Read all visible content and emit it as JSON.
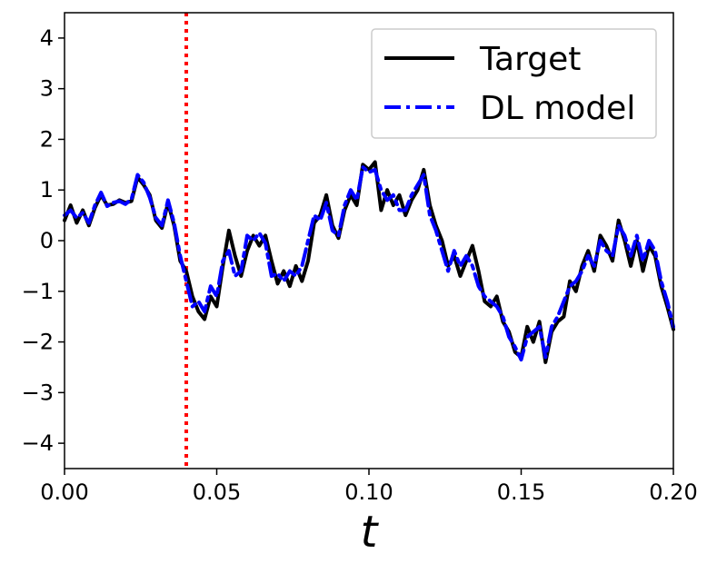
{
  "chart_data": {
    "type": "line",
    "title": "",
    "xlabel": "t",
    "ylabel": "",
    "xlim": [
      0.0,
      0.2
    ],
    "ylim": [
      -4.5,
      4.5
    ],
    "x_ticks": [
      0.0,
      0.05,
      0.1,
      0.15,
      0.2
    ],
    "x_tick_labels": [
      "0.00",
      "0.05",
      "0.10",
      "0.15",
      "0.20"
    ],
    "y_ticks": [
      4,
      3,
      2,
      1,
      0,
      -1,
      -2,
      -3,
      -4
    ],
    "y_tick_labels": [
      "4",
      "3",
      "2",
      "1",
      "0",
      "−1",
      "−2",
      "−3",
      "−4"
    ],
    "grid": false,
    "legend_position": "top-right",
    "vline": {
      "x": 0.04,
      "color": "#ff0000",
      "style": "dotted"
    },
    "series": [
      {
        "name": "Target",
        "color": "#000000",
        "style": "solid",
        "points": [
          [
            0.0,
            0.4
          ],
          [
            0.002,
            0.7
          ],
          [
            0.004,
            0.35
          ],
          [
            0.006,
            0.6
          ],
          [
            0.008,
            0.3
          ],
          [
            0.01,
            0.65
          ],
          [
            0.012,
            0.9
          ],
          [
            0.014,
            0.7
          ],
          [
            0.016,
            0.72
          ],
          [
            0.018,
            0.8
          ],
          [
            0.02,
            0.75
          ],
          [
            0.022,
            0.78
          ],
          [
            0.024,
            1.25
          ],
          [
            0.026,
            1.1
          ],
          [
            0.028,
            0.9
          ],
          [
            0.03,
            0.4
          ],
          [
            0.032,
            0.25
          ],
          [
            0.034,
            0.75
          ],
          [
            0.036,
            0.3
          ],
          [
            0.038,
            -0.4
          ],
          [
            0.04,
            -0.6
          ],
          [
            0.042,
            -1.1
          ],
          [
            0.044,
            -1.4
          ],
          [
            0.046,
            -1.55
          ],
          [
            0.048,
            -1.1
          ],
          [
            0.05,
            -1.3
          ],
          [
            0.052,
            -0.5
          ],
          [
            0.054,
            0.2
          ],
          [
            0.056,
            -0.3
          ],
          [
            0.058,
            -0.7
          ],
          [
            0.06,
            -0.2
          ],
          [
            0.062,
            0.1
          ],
          [
            0.064,
            -0.1
          ],
          [
            0.066,
            0.1
          ],
          [
            0.068,
            -0.4
          ],
          [
            0.07,
            -0.85
          ],
          [
            0.072,
            -0.6
          ],
          [
            0.074,
            -0.9
          ],
          [
            0.076,
            -0.5
          ],
          [
            0.078,
            -0.8
          ],
          [
            0.08,
            -0.4
          ],
          [
            0.082,
            0.35
          ],
          [
            0.084,
            0.5
          ],
          [
            0.086,
            0.9
          ],
          [
            0.088,
            0.3
          ],
          [
            0.09,
            0.05
          ],
          [
            0.092,
            0.6
          ],
          [
            0.094,
            0.9
          ],
          [
            0.096,
            0.7
          ],
          [
            0.098,
            1.5
          ],
          [
            0.1,
            1.4
          ],
          [
            0.102,
            1.55
          ],
          [
            0.104,
            0.6
          ],
          [
            0.106,
            1.0
          ],
          [
            0.108,
            0.7
          ],
          [
            0.11,
            0.9
          ],
          [
            0.112,
            0.5
          ],
          [
            0.114,
            0.8
          ],
          [
            0.116,
            1.0
          ],
          [
            0.118,
            1.4
          ],
          [
            0.12,
            0.7
          ],
          [
            0.122,
            0.3
          ],
          [
            0.124,
            0.0
          ],
          [
            0.126,
            -0.5
          ],
          [
            0.128,
            -0.3
          ],
          [
            0.13,
            -0.7
          ],
          [
            0.132,
            -0.4
          ],
          [
            0.134,
            -0.1
          ],
          [
            0.136,
            -0.6
          ],
          [
            0.138,
            -1.2
          ],
          [
            0.14,
            -1.3
          ],
          [
            0.142,
            -1.1
          ],
          [
            0.144,
            -1.6
          ],
          [
            0.146,
            -1.8
          ],
          [
            0.148,
            -2.2
          ],
          [
            0.15,
            -2.3
          ],
          [
            0.152,
            -1.7
          ],
          [
            0.154,
            -2.0
          ],
          [
            0.156,
            -1.6
          ],
          [
            0.158,
            -2.4
          ],
          [
            0.16,
            -1.8
          ],
          [
            0.162,
            -1.6
          ],
          [
            0.164,
            -1.5
          ],
          [
            0.166,
            -0.8
          ],
          [
            0.168,
            -1.0
          ],
          [
            0.17,
            -0.5
          ],
          [
            0.172,
            -0.2
          ],
          [
            0.174,
            -0.6
          ],
          [
            0.176,
            0.1
          ],
          [
            0.178,
            -0.1
          ],
          [
            0.18,
            -0.4
          ],
          [
            0.182,
            0.4
          ],
          [
            0.184,
            0.0
          ],
          [
            0.186,
            -0.5
          ],
          [
            0.188,
            0.0
          ],
          [
            0.19,
            -0.6
          ],
          [
            0.192,
            -0.1
          ],
          [
            0.194,
            -0.3
          ],
          [
            0.196,
            -0.9
          ],
          [
            0.198,
            -1.3
          ],
          [
            0.2,
            -1.75
          ]
        ]
      },
      {
        "name": "DL model",
        "color": "#0000ff",
        "style": "dashdot",
        "points": [
          [
            0.0,
            0.5
          ],
          [
            0.002,
            0.6
          ],
          [
            0.004,
            0.45
          ],
          [
            0.006,
            0.55
          ],
          [
            0.008,
            0.35
          ],
          [
            0.01,
            0.7
          ],
          [
            0.012,
            0.95
          ],
          [
            0.014,
            0.68
          ],
          [
            0.016,
            0.75
          ],
          [
            0.018,
            0.78
          ],
          [
            0.02,
            0.72
          ],
          [
            0.022,
            0.82
          ],
          [
            0.024,
            1.3
          ],
          [
            0.026,
            1.15
          ],
          [
            0.028,
            0.85
          ],
          [
            0.03,
            0.45
          ],
          [
            0.032,
            0.3
          ],
          [
            0.034,
            0.8
          ],
          [
            0.036,
            0.35
          ],
          [
            0.038,
            -0.3
          ],
          [
            0.04,
            -0.8
          ],
          [
            0.042,
            -1.3
          ],
          [
            0.044,
            -1.2
          ],
          [
            0.046,
            -1.4
          ],
          [
            0.048,
            -0.9
          ],
          [
            0.05,
            -1.1
          ],
          [
            0.052,
            -0.4
          ],
          [
            0.054,
            -0.2
          ],
          [
            0.056,
            -0.7
          ],
          [
            0.058,
            -0.6
          ],
          [
            0.06,
            0.1
          ],
          [
            0.062,
            0.0
          ],
          [
            0.064,
            0.15
          ],
          [
            0.066,
            -0.05
          ],
          [
            0.068,
            -0.7
          ],
          [
            0.07,
            -0.65
          ],
          [
            0.072,
            -0.8
          ],
          [
            0.074,
            -0.6
          ],
          [
            0.076,
            -0.7
          ],
          [
            0.078,
            -0.5
          ],
          [
            0.08,
            0.0
          ],
          [
            0.082,
            0.5
          ],
          [
            0.084,
            0.4
          ],
          [
            0.086,
            0.75
          ],
          [
            0.088,
            0.2
          ],
          [
            0.09,
            0.1
          ],
          [
            0.092,
            0.7
          ],
          [
            0.094,
            1.0
          ],
          [
            0.096,
            0.8
          ],
          [
            0.098,
            1.45
          ],
          [
            0.1,
            1.35
          ],
          [
            0.102,
            1.4
          ],
          [
            0.104,
            1.0
          ],
          [
            0.106,
            0.8
          ],
          [
            0.108,
            0.9
          ],
          [
            0.11,
            0.6
          ],
          [
            0.112,
            0.6
          ],
          [
            0.114,
            0.9
          ],
          [
            0.116,
            1.1
          ],
          [
            0.118,
            1.3
          ],
          [
            0.12,
            0.5
          ],
          [
            0.122,
            0.2
          ],
          [
            0.124,
            -0.2
          ],
          [
            0.126,
            -0.6
          ],
          [
            0.128,
            -0.2
          ],
          [
            0.13,
            -0.5
          ],
          [
            0.132,
            -0.3
          ],
          [
            0.134,
            -0.5
          ],
          [
            0.136,
            -0.9
          ],
          [
            0.138,
            -1.1
          ],
          [
            0.14,
            -1.2
          ],
          [
            0.142,
            -1.3
          ],
          [
            0.144,
            -1.5
          ],
          [
            0.146,
            -1.9
          ],
          [
            0.148,
            -2.1
          ],
          [
            0.15,
            -2.35
          ],
          [
            0.152,
            -1.9
          ],
          [
            0.154,
            -1.8
          ],
          [
            0.156,
            -1.7
          ],
          [
            0.158,
            -2.3
          ],
          [
            0.16,
            -1.7
          ],
          [
            0.162,
            -1.5
          ],
          [
            0.164,
            -1.2
          ],
          [
            0.166,
            -0.9
          ],
          [
            0.168,
            -0.8
          ],
          [
            0.17,
            -0.6
          ],
          [
            0.172,
            -0.3
          ],
          [
            0.174,
            -0.5
          ],
          [
            0.176,
            0.0
          ],
          [
            0.178,
            -0.2
          ],
          [
            0.18,
            -0.3
          ],
          [
            0.182,
            0.3
          ],
          [
            0.184,
            0.1
          ],
          [
            0.186,
            -0.3
          ],
          [
            0.188,
            0.1
          ],
          [
            0.19,
            -0.4
          ],
          [
            0.192,
            0.0
          ],
          [
            0.194,
            -0.2
          ],
          [
            0.196,
            -0.8
          ],
          [
            0.198,
            -1.2
          ],
          [
            0.2,
            -1.7
          ]
        ]
      }
    ]
  }
}
